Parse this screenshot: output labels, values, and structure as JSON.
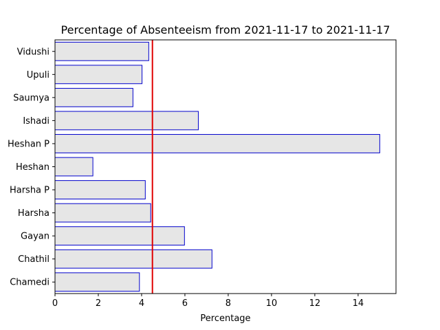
{
  "chart_data": {
    "type": "bar",
    "orientation": "horizontal",
    "title": "Percentage of Absenteeism from 2021-11-17 to 2021-11-17",
    "xlabel": "Percentage",
    "ylabel": "",
    "xlim": [
      0,
      15.75
    ],
    "xticks": [
      0,
      2,
      4,
      6,
      8,
      10,
      12,
      14
    ],
    "categories": [
      "Chamedi",
      "Chathil",
      "Gayan",
      "Harsha",
      "Harsha P",
      "Heshan",
      "Heshan P",
      "Ishadi",
      "Saumya",
      "Upuli",
      "Vidushi"
    ],
    "values": [
      3.9,
      7.25,
      5.98,
      4.42,
      4.17,
      1.75,
      15.0,
      6.62,
      3.6,
      4.02,
      4.33
    ],
    "reference_line": {
      "x": 4.5,
      "color": "#e00000"
    },
    "bar_fill": "#e6e6e6",
    "bar_edge": "#0000cc",
    "grid": false,
    "legend": "none"
  }
}
